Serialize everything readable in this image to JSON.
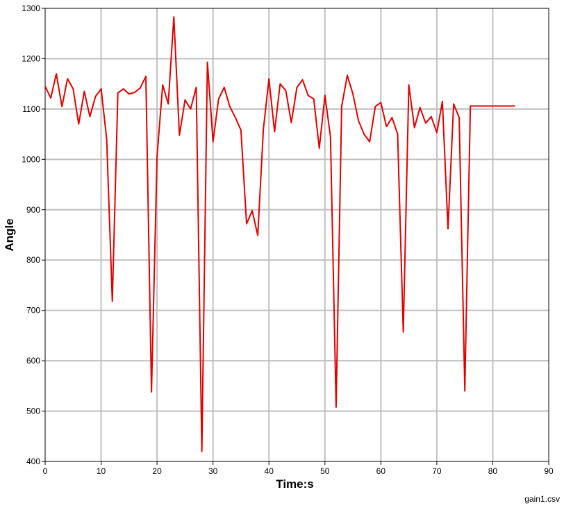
{
  "chart_data": {
    "type": "line",
    "xlabel": "Time:s",
    "ylabel": "Angle",
    "source_label": "gain1.csv",
    "xlim": [
      0,
      90
    ],
    "ylim": [
      400,
      1300
    ],
    "x_ticks": [
      0,
      10,
      20,
      30,
      40,
      50,
      60,
      70,
      80,
      90
    ],
    "y_ticks": [
      400,
      500,
      600,
      700,
      800,
      900,
      1000,
      1100,
      1200,
      1300
    ],
    "grid": true,
    "line_color": "#e00000",
    "grid_color": "#c0c0c0",
    "series": [
      {
        "x": [
          0,
          1,
          2,
          3,
          4,
          5,
          6,
          7,
          8,
          9,
          10,
          11,
          12,
          13,
          14,
          15,
          16,
          17,
          18,
          19,
          20,
          21,
          22,
          23,
          24,
          25,
          26,
          27,
          28,
          29,
          30,
          31,
          32,
          33,
          34,
          35,
          36,
          37,
          38,
          39,
          40,
          41,
          42,
          43,
          44,
          45,
          46,
          47,
          48,
          49,
          50,
          51,
          52,
          53,
          54,
          55,
          56,
          57,
          58,
          59,
          60,
          61,
          62,
          63,
          64,
          65,
          66,
          67,
          68,
          69,
          70,
          71,
          72,
          73,
          74,
          75,
          76,
          77,
          78,
          79,
          80,
          81,
          82,
          83,
          84
        ],
        "y": [
          1145,
          1122,
          1170,
          1105,
          1160,
          1140,
          1070,
          1135,
          1085,
          1125,
          1140,
          1040,
          718,
          1132,
          1140,
          1130,
          1133,
          1142,
          1165,
          538,
          1005,
          1148,
          1110,
          1283,
          1048,
          1118,
          1100,
          1143,
          420,
          1193,
          1035,
          1120,
          1143,
          1105,
          1083,
          1058,
          872,
          898,
          849,
          1060,
          1160,
          1055,
          1150,
          1137,
          1073,
          1143,
          1158,
          1127,
          1120,
          1022,
          1127,
          1045,
          508,
          1105,
          1167,
          1130,
          1077,
          1050,
          1035,
          1105,
          1113,
          1065,
          1083,
          1050,
          657,
          1148,
          1063,
          1103,
          1072,
          1085,
          1053,
          1115,
          862,
          1110,
          1083,
          540,
          1106,
          1106,
          1106,
          1106,
          1106,
          1106,
          1106,
          1106,
          1106
        ]
      }
    ]
  }
}
